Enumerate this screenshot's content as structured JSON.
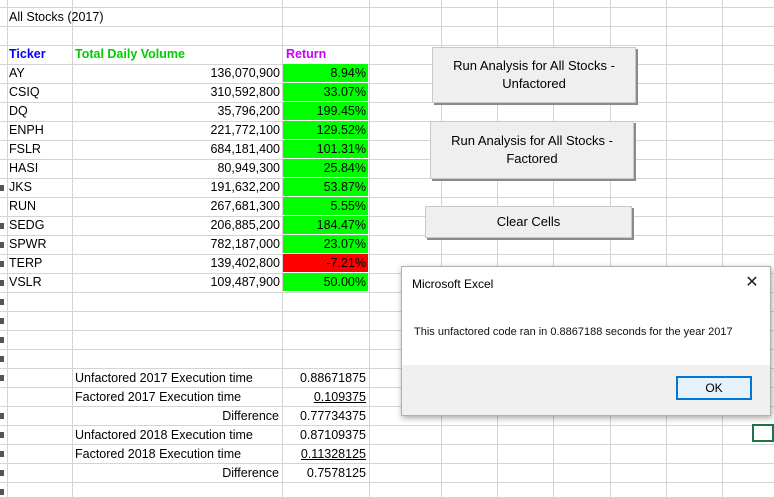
{
  "sheet": {
    "title": "All Stocks (2017)",
    "headers": {
      "ticker": "Ticker",
      "volume": "Total Daily Volume",
      "return": "Return"
    },
    "header_colors": {
      "ticker": "#0000ff",
      "volume": "#00cc00",
      "return": "#cc00ff"
    },
    "rows": [
      {
        "ticker": "AY",
        "volume": "136,070,900",
        "return": "8.94%",
        "status": "positive"
      },
      {
        "ticker": "CSIQ",
        "volume": "310,592,800",
        "return": "33.07%",
        "status": "positive"
      },
      {
        "ticker": "DQ",
        "volume": "35,796,200",
        "return": "199.45%",
        "status": "positive"
      },
      {
        "ticker": "ENPH",
        "volume": "221,772,100",
        "return": "129.52%",
        "status": "positive"
      },
      {
        "ticker": "FSLR",
        "volume": "684,181,400",
        "return": "101.31%",
        "status": "positive"
      },
      {
        "ticker": "HASI",
        "volume": "80,949,300",
        "return": "25.84%",
        "status": "positive"
      },
      {
        "ticker": "JKS",
        "volume": "191,632,200",
        "return": "53.87%",
        "status": "positive"
      },
      {
        "ticker": "RUN",
        "volume": "267,681,300",
        "return": "5.55%",
        "status": "positive"
      },
      {
        "ticker": "SEDG",
        "volume": "206,885,200",
        "return": "184.47%",
        "status": "positive"
      },
      {
        "ticker": "SPWR",
        "volume": "782,187,000",
        "return": "23.07%",
        "status": "positive"
      },
      {
        "ticker": "TERP",
        "volume": "139,402,800",
        "return": "-7.21%",
        "status": "negative"
      },
      {
        "ticker": "VSLR",
        "volume": "109,487,900",
        "return": "50.00%",
        "status": "positive"
      }
    ],
    "timing": [
      {
        "label": "Unfactored 2017 Execution time",
        "value": "0.88671875",
        "underline": false
      },
      {
        "label": "Factored 2017 Execution time",
        "value": "0.109375",
        "underline": true
      },
      {
        "label": "Difference",
        "value": "0.77734375",
        "underline": false
      },
      {
        "label": "Unfactored 2018 Execution time",
        "value": "0.87109375",
        "underline": false
      },
      {
        "label": "Factored 2018 Execution time",
        "value": "0.11328125",
        "underline": true
      },
      {
        "label": "Difference",
        "value": "0.7578125",
        "underline": false
      }
    ]
  },
  "buttons": {
    "run_unfactored": "Run Analysis for All Stocks - Unfactored",
    "run_factored": "Run Analysis for All Stocks - Factored",
    "clear": "Clear Cells"
  },
  "dialog": {
    "title": "Microsoft Excel",
    "close_icon": "close-icon",
    "message": "This unfactored code ran in 0.8867188 seconds for the year 2017",
    "ok_label": "OK"
  }
}
